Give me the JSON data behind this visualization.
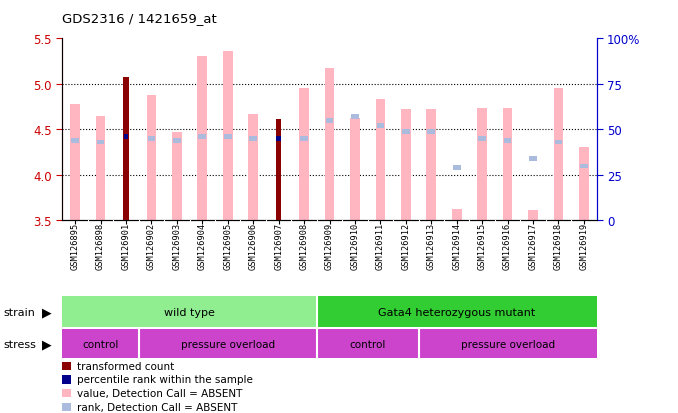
{
  "title": "GDS2316 / 1421659_at",
  "samples": [
    "GSM126895",
    "GSM126898",
    "GSM126901",
    "GSM126902",
    "GSM126903",
    "GSM126904",
    "GSM126905",
    "GSM126906",
    "GSM126907",
    "GSM126908",
    "GSM126909",
    "GSM126910",
    "GSM126911",
    "GSM126912",
    "GSM126913",
    "GSM126914",
    "GSM126915",
    "GSM126916",
    "GSM126917",
    "GSM126918",
    "GSM126919"
  ],
  "pink_values": [
    4.78,
    4.65,
    null,
    4.88,
    4.47,
    5.31,
    5.36,
    4.67,
    null,
    4.95,
    5.17,
    4.62,
    4.83,
    4.72,
    4.72,
    3.63,
    4.74,
    4.73,
    3.62,
    4.96,
    4.31
  ],
  "blue_ranks_absent": [
    44,
    43,
    null,
    45,
    44,
    46,
    46,
    45,
    null,
    45,
    55,
    57,
    52,
    49,
    49,
    29,
    45,
    44,
    34,
    43,
    30
  ],
  "red_values": [
    null,
    null,
    5.07,
    null,
    null,
    null,
    null,
    null,
    4.61,
    null,
    null,
    null,
    null,
    null,
    null,
    null,
    null,
    null,
    null,
    null,
    null
  ],
  "darkblue_ranks": [
    null,
    null,
    46,
    null,
    null,
    null,
    null,
    null,
    45,
    null,
    null,
    null,
    null,
    null,
    null,
    null,
    null,
    null,
    null,
    null,
    null
  ],
  "ylim_left": [
    3.5,
    5.5
  ],
  "ylim_right": [
    0,
    100
  ],
  "yticks_left": [
    3.5,
    4.0,
    4.5,
    5.0,
    5.5
  ],
  "yticks_right": [
    0,
    25,
    50,
    75,
    100
  ],
  "ytick_labels_right": [
    "0",
    "25",
    "50",
    "75",
    "100%"
  ],
  "dotted_vals": [
    4.0,
    4.5,
    5.0
  ],
  "pink_color": "#FFB6C1",
  "lightblue_color": "#AABBDD",
  "red_color": "#8B0000",
  "darkblue_color": "#00008B",
  "axis_left_color": "#CC0000",
  "axis_right_color": "#0000CC",
  "strain_color_wt": "#90EE90",
  "strain_color_mut": "#32CD32",
  "stress_color": "#CC44CC",
  "bg_color": "#FFFFFF",
  "xtick_bg": "#C8C8C8",
  "strain_split": 9.5,
  "stress_splits": [
    2.5,
    9.5,
    13.5
  ],
  "stress_labels": [
    "control",
    "pressure overload",
    "control",
    "pressure overload"
  ]
}
